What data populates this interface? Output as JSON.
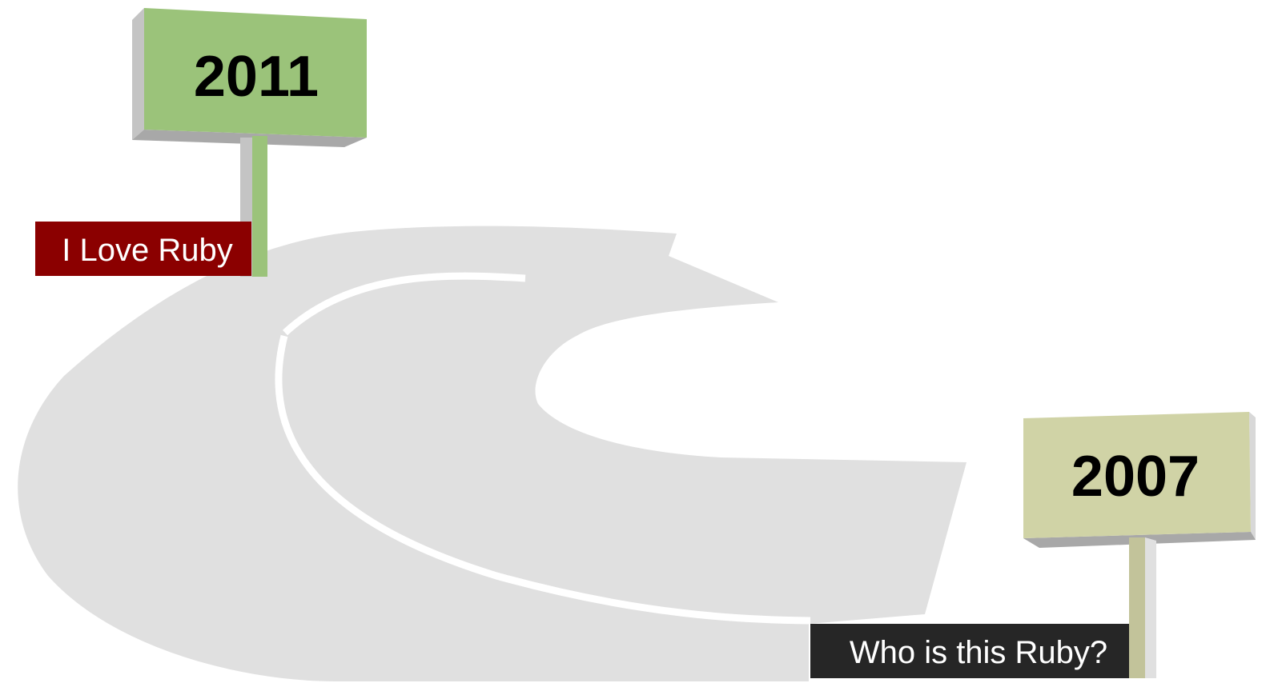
{
  "signs": [
    {
      "year": "2011",
      "label": "I Love Ruby"
    },
    {
      "year": "2007",
      "label": "Who is this Ruby?"
    }
  ]
}
